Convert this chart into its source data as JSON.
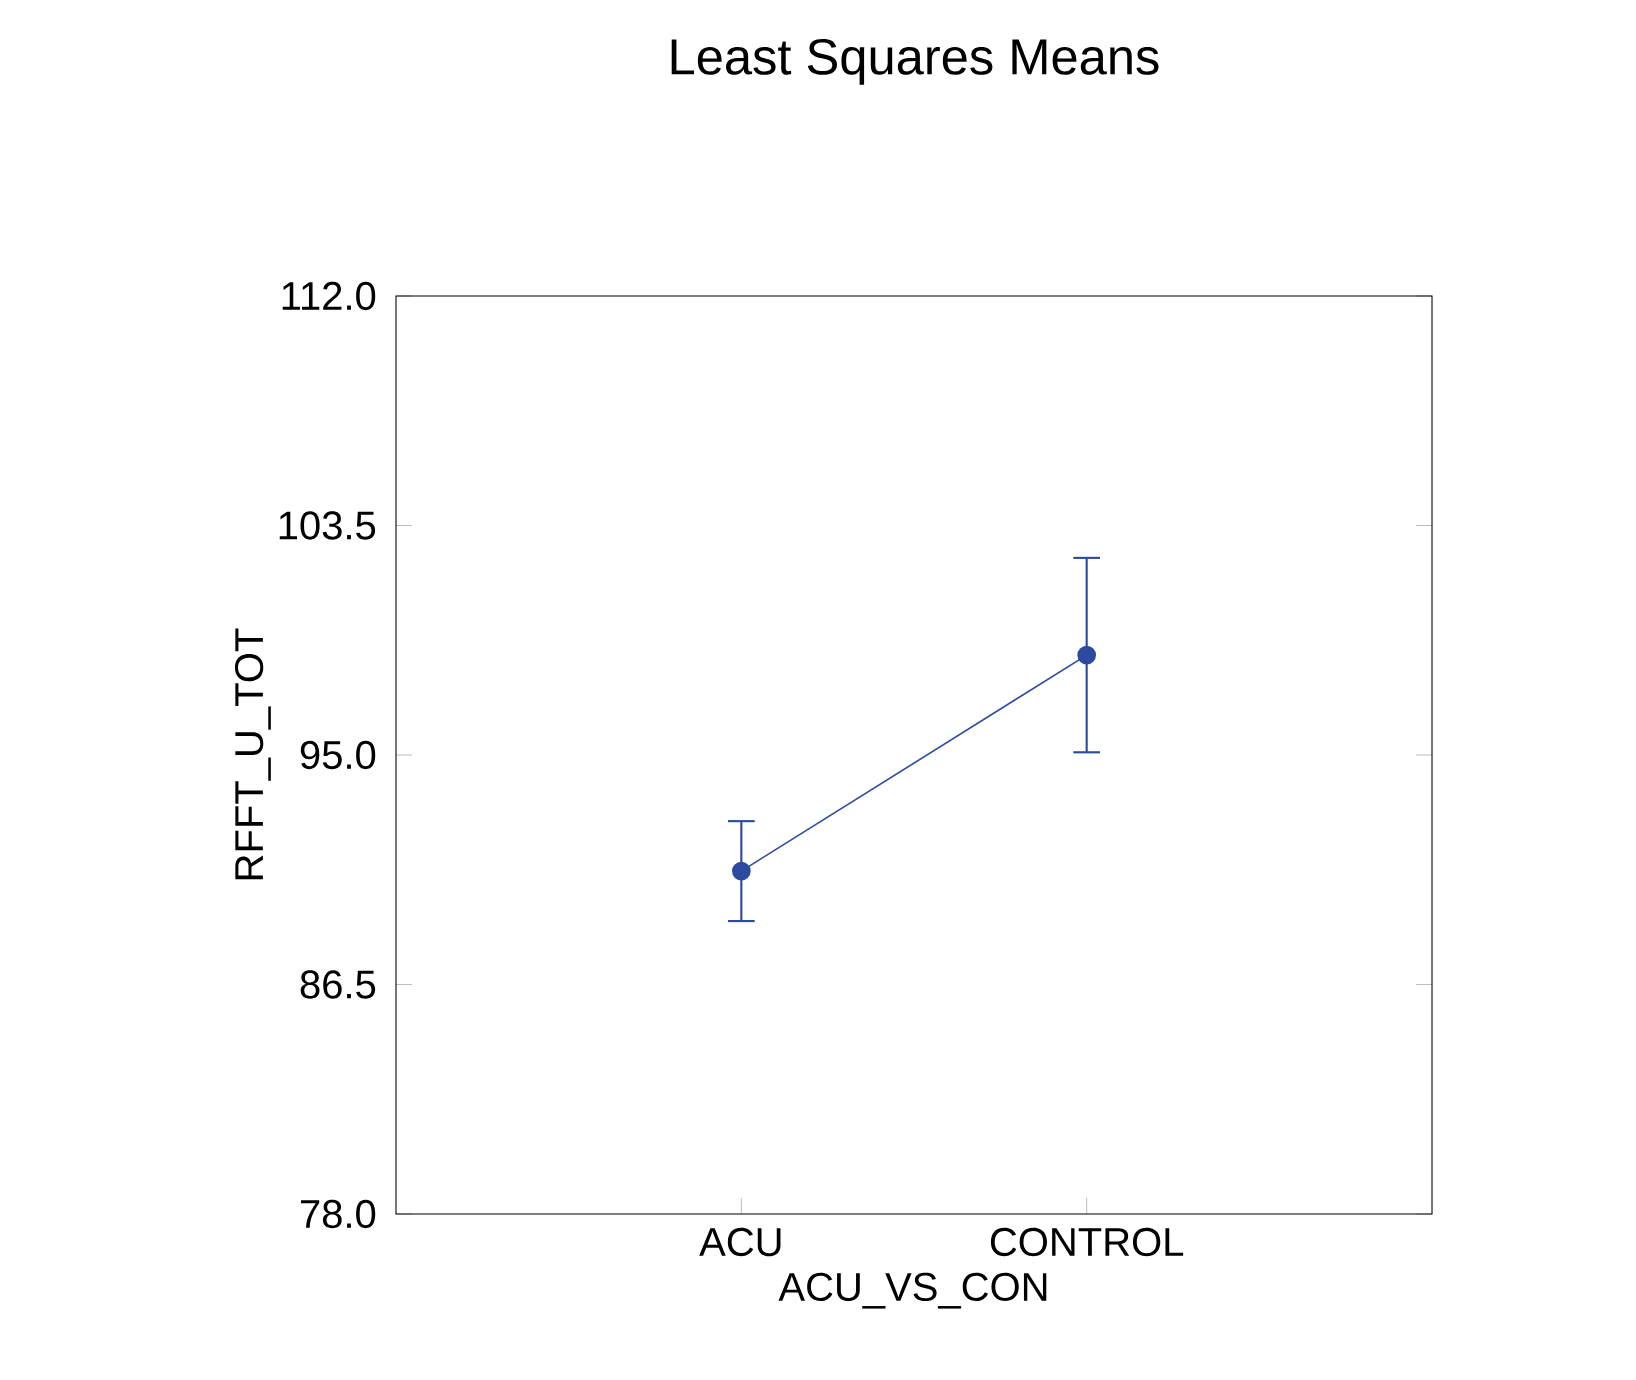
{
  "chart_data": {
    "type": "line",
    "title": "Least Squares Means",
    "xlabel": "ACU_VS_CON",
    "ylabel": "RFFT_U_TOT",
    "categories": [
      "ACU",
      "CONTROL"
    ],
    "series": [
      {
        "color": "#2b4aa0",
        "values": [
          90.7,
          98.7
        ],
        "errors": [
          1.85,
          3.6
        ]
      }
    ],
    "ylim": [
      78,
      112
    ],
    "yticks": [
      {
        "value": 78,
        "label": "78.0"
      },
      {
        "value": 86.5,
        "label": "86.5"
      },
      {
        "value": 95,
        "label": "95.0"
      },
      {
        "value": 103.5,
        "label": "103.5"
      },
      {
        "value": 112,
        "label": "112.0"
      }
    ],
    "marker": "circle",
    "line_style": "solid",
    "grid": false
  }
}
